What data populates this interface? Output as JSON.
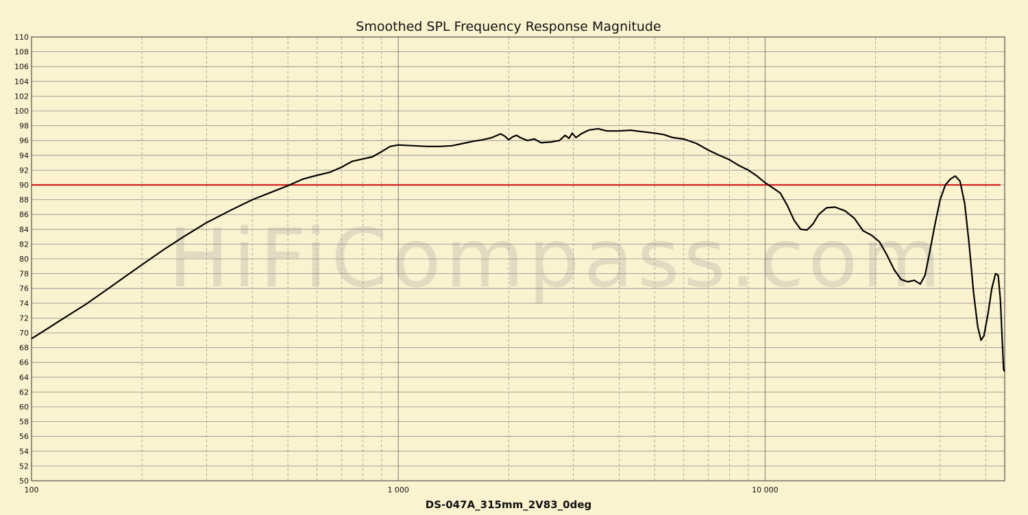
{
  "chart_data": {
    "type": "line",
    "title": "Smoothed SPL Frequency Response Magnitude",
    "xlabel": "DS-047A_315mm_2V83_0deg",
    "ylabel": "",
    "x_scale": "log",
    "xlim": [
      100,
      45000
    ],
    "ylim": [
      50,
      110
    ],
    "y_ticks": [
      50,
      52,
      54,
      56,
      58,
      60,
      62,
      64,
      66,
      68,
      70,
      72,
      74,
      76,
      78,
      80,
      82,
      84,
      86,
      88,
      90,
      92,
      94,
      96,
      98,
      100,
      102,
      104,
      106,
      108,
      110
    ],
    "x_ticks": [
      {
        "value": 100,
        "label": "100"
      },
      {
        "value": 1000,
        "label": "1 000"
      },
      {
        "value": 10000,
        "label": "10 000"
      }
    ],
    "grid": true,
    "watermark": "HiFiCompass.com",
    "reference_line": {
      "y": 90,
      "color": "#d42020"
    },
    "series": [
      {
        "color": "#000000",
        "points": [
          [
            100,
            69.2
          ],
          [
            110,
            70.5
          ],
          [
            120,
            71.7
          ],
          [
            140,
            73.8
          ],
          [
            160,
            75.8
          ],
          [
            180,
            77.6
          ],
          [
            200,
            79.2
          ],
          [
            230,
            81.3
          ],
          [
            260,
            83.0
          ],
          [
            300,
            84.9
          ],
          [
            350,
            86.6
          ],
          [
            400,
            88.0
          ],
          [
            450,
            89.0
          ],
          [
            500,
            89.9
          ],
          [
            550,
            90.8
          ],
          [
            600,
            91.3
          ],
          [
            650,
            91.7
          ],
          [
            700,
            92.4
          ],
          [
            750,
            93.2
          ],
          [
            800,
            93.5
          ],
          [
            850,
            93.8
          ],
          [
            900,
            94.5
          ],
          [
            950,
            95.2
          ],
          [
            1000,
            95.4
          ],
          [
            1100,
            95.3
          ],
          [
            1200,
            95.2
          ],
          [
            1300,
            95.2
          ],
          [
            1400,
            95.3
          ],
          [
            1500,
            95.6
          ],
          [
            1600,
            95.9
          ],
          [
            1700,
            96.1
          ],
          [
            1800,
            96.4
          ],
          [
            1900,
            96.9
          ],
          [
            1950,
            96.6
          ],
          [
            2000,
            96.1
          ],
          [
            2050,
            96.5
          ],
          [
            2100,
            96.7
          ],
          [
            2150,
            96.4
          ],
          [
            2250,
            96.0
          ],
          [
            2350,
            96.2
          ],
          [
            2450,
            95.7
          ],
          [
            2600,
            95.8
          ],
          [
            2750,
            96.0
          ],
          [
            2850,
            96.7
          ],
          [
            2920,
            96.3
          ],
          [
            2980,
            97.0
          ],
          [
            3050,
            96.4
          ],
          [
            3150,
            96.9
          ],
          [
            3300,
            97.4
          ],
          [
            3500,
            97.6
          ],
          [
            3700,
            97.3
          ],
          [
            4000,
            97.3
          ],
          [
            4300,
            97.4
          ],
          [
            4600,
            97.2
          ],
          [
            5000,
            97.0
          ],
          [
            5300,
            96.8
          ],
          [
            5600,
            96.4
          ],
          [
            6000,
            96.2
          ],
          [
            6500,
            95.6
          ],
          [
            7000,
            94.7
          ],
          [
            7500,
            94.0
          ],
          [
            8000,
            93.4
          ],
          [
            8500,
            92.6
          ],
          [
            9000,
            92.0
          ],
          [
            9500,
            91.2
          ],
          [
            10000,
            90.3
          ],
          [
            10500,
            89.6
          ],
          [
            11000,
            88.9
          ],
          [
            11500,
            87.2
          ],
          [
            12000,
            85.2
          ],
          [
            12500,
            84.0
          ],
          [
            13000,
            83.9
          ],
          [
            13500,
            84.7
          ],
          [
            14000,
            86.0
          ],
          [
            14700,
            86.9
          ],
          [
            15500,
            87.0
          ],
          [
            16500,
            86.5
          ],
          [
            17500,
            85.5
          ],
          [
            18500,
            83.8
          ],
          [
            19500,
            83.2
          ],
          [
            20500,
            82.3
          ],
          [
            21500,
            80.5
          ],
          [
            22500,
            78.5
          ],
          [
            23500,
            77.2
          ],
          [
            24500,
            76.9
          ],
          [
            25500,
            77.1
          ],
          [
            26500,
            76.6
          ],
          [
            27300,
            77.8
          ],
          [
            28000,
            80.5
          ],
          [
            29000,
            84.5
          ],
          [
            30000,
            88.0
          ],
          [
            31000,
            90.0
          ],
          [
            32000,
            90.8
          ],
          [
            33000,
            91.2
          ],
          [
            34000,
            90.5
          ],
          [
            35000,
            87.5
          ],
          [
            36000,
            82.0
          ],
          [
            37000,
            75.5
          ],
          [
            38000,
            70.8
          ],
          [
            38800,
            69.0
          ],
          [
            39500,
            69.6
          ],
          [
            40500,
            72.5
          ],
          [
            41500,
            76.0
          ],
          [
            42500,
            78.0
          ],
          [
            43200,
            77.8
          ],
          [
            43800,
            74.5
          ],
          [
            44300,
            69.0
          ],
          [
            44700,
            65.0
          ],
          [
            45000,
            64.8
          ]
        ]
      }
    ]
  }
}
